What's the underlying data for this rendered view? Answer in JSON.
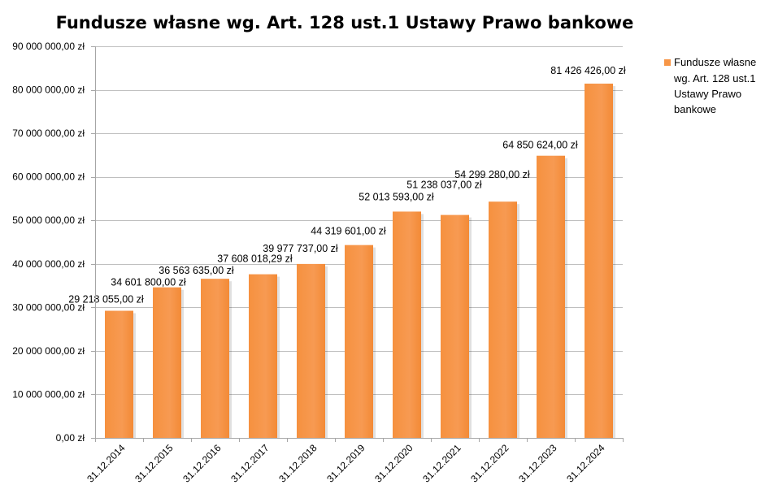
{
  "chart_data": {
    "type": "bar",
    "title": "Fundusze własne wg. Art. 128 ust.1 Ustawy Prawo bankowe",
    "xlabel": "",
    "ylabel": "",
    "categories": [
      "31.12.2014",
      "31.12.2015",
      "31.12.2016",
      "31.12.2017",
      "31.12.2018",
      "31.12.2019",
      "31.12.2020",
      "31.12.2021",
      "31.12.2022",
      "31.12.2023",
      "31.12.2024"
    ],
    "series": [
      {
        "name": "Fundusze własne wg. Art. 128 ust.1 Ustawy Prawo bankowe",
        "color": "#F79646",
        "values": [
          29218055.0,
          34601800.0,
          36563635.0,
          37608018.29,
          39977737.0,
          44319601.0,
          52013593.0,
          51238037.0,
          54299280.0,
          64850624.0,
          81426426.0
        ],
        "data_labels": [
          "29 218 055,00 zł",
          "34 601 800,00 zł",
          "36 563 635,00 zł",
          "37 608 018,29 zł",
          "39 977 737,00 zł",
          "44 319 601,00 zł",
          "52 013 593,00 zł",
          "51 238 037,00 zł",
          "54 299 280,00 zł",
          "64 850 624,00 zł",
          "81 426 426,00 zł"
        ]
      }
    ],
    "ylim": [
      0,
      90000000
    ],
    "y_ticks": [
      0,
      10000000,
      20000000,
      30000000,
      40000000,
      50000000,
      60000000,
      70000000,
      80000000,
      90000000
    ],
    "y_tick_labels": [
      "0,00 zł",
      "10 000 000,00 zł",
      "20 000 000,00 zł",
      "30 000 000,00 zł",
      "40 000 000,00 zł",
      "50 000 000,00 zł",
      "60 000 000,00 zł",
      "70 000 000,00 zł",
      "80 000 000,00 zł",
      "90 000 000,00 zł"
    ],
    "legend": {
      "position": "right",
      "lines": [
        "Fundusze własne",
        "wg. Art. 128 ust.1",
        "Ustawy Prawo",
        "bankowe"
      ]
    },
    "grid": true,
    "colors": {
      "bar": "#F79646",
      "grid": "#BFBFBF",
      "axis": "#A6A6A6"
    }
  }
}
